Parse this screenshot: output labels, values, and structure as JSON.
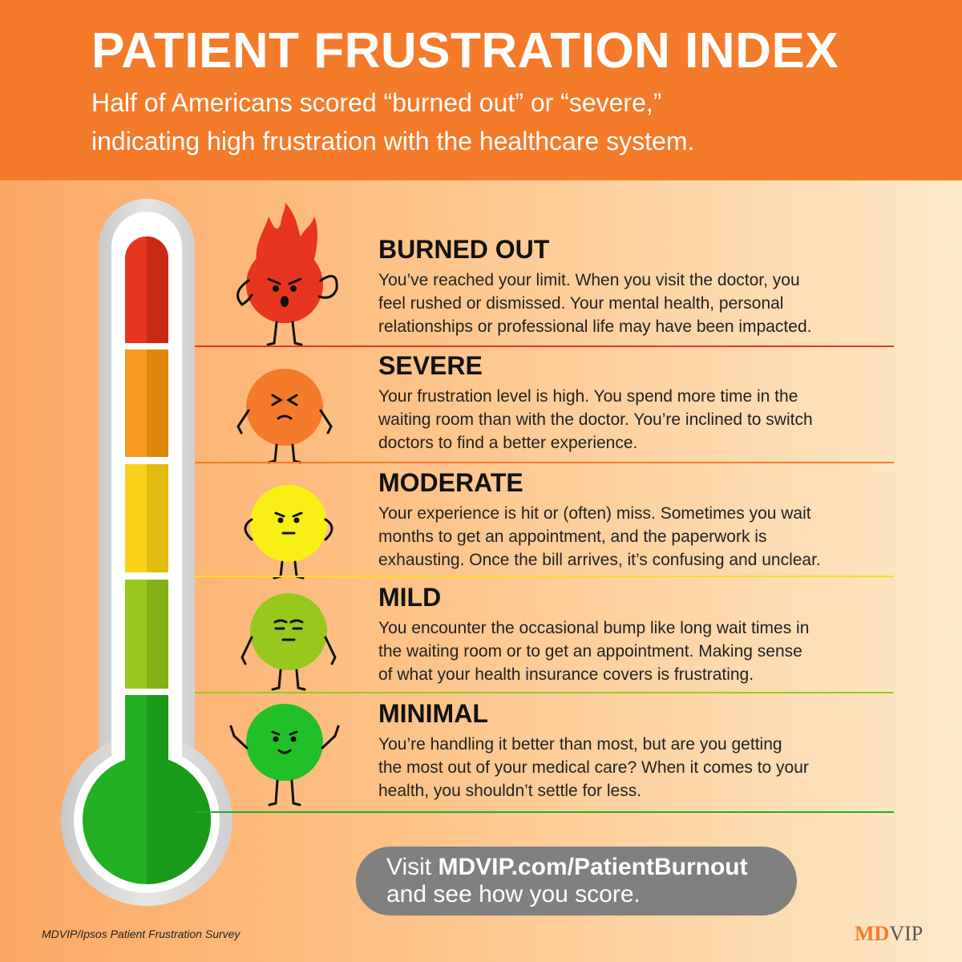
{
  "header": {
    "title": "PATIENT FRUSTRATION INDEX",
    "subtitle_line1": "Half of Americans scored “burned out” or “severe,”",
    "subtitle_line2": "indicating high frustration with the healthcare system."
  },
  "colors": {
    "header_bg": "#f47b2a",
    "burned_out": "#e8351f",
    "severe": "#f47b2a",
    "moderate": "#f8d218",
    "mild": "#97c81e",
    "minimal": "#22b022",
    "cta_bg": "#808080"
  },
  "levels": [
    {
      "name": "BURNED OUT",
      "icon": "flaming-red-face-icon",
      "lines": [
        "You’ve reached your limit. When you visit the doctor, you",
        "feel rushed or dismissed. Your mental health, personal",
        "relationships or professional life may have been impacted."
      ]
    },
    {
      "name": "SEVERE",
      "icon": "squinting-orange-face-icon",
      "lines": [
        "Your frustration level is high. You spend more time in the",
        "waiting room than with the doctor. You’re inclined to switch",
        "doctors to find a better experience."
      ]
    },
    {
      "name": "MODERATE",
      "icon": "annoyed-yellow-face-icon",
      "lines": [
        "Your experience is hit or (often) miss. Sometimes you wait",
        "months to get an appointment, and the paperwork is",
        "exhausting. Once the bill arrives, it’s confusing and unclear."
      ]
    },
    {
      "name": "MILD",
      "icon": "unimpressed-lime-face-icon",
      "lines": [
        "You encounter the occasional bump like long wait times in",
        "the waiting room or to get an appointment. Making sense",
        "of what your health insurance covers is frustrating."
      ]
    },
    {
      "name": "MINIMAL",
      "icon": "happy-green-face-icon",
      "lines": [
        "You’re handling it better than most, but are you getting",
        "the most out of your medical care? When it comes to your",
        "health, you shouldn’t settle for less."
      ]
    }
  ],
  "cta": {
    "prefix": "Visit ",
    "url": "MDVIP.com/PatientBurnout",
    "line2": "and see how you score."
  },
  "source": "MDVIP/Ipsos Patient Frustration Survey",
  "logo": {
    "part1": "MD",
    "part2": "VIP"
  }
}
